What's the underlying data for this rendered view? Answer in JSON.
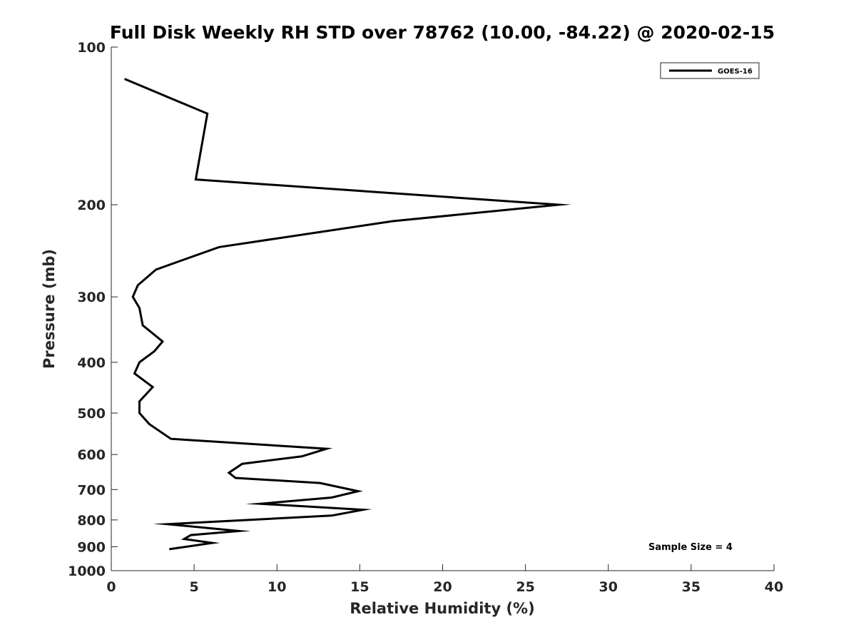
{
  "chart_data": {
    "type": "line",
    "title": "Full Disk Weekly RH STD over 78762 (10.00, -84.22) @ 2020-02-15",
    "xlabel": "Relative Humidity (%)",
    "ylabel": "Pressure (mb)",
    "xlim": [
      0,
      40
    ],
    "ylim": [
      100,
      1000
    ],
    "y_scale": "log",
    "y_reversed": true,
    "x_ticks": [
      0,
      5,
      10,
      15,
      20,
      25,
      30,
      35,
      40
    ],
    "y_ticks": [
      100,
      200,
      300,
      400,
      500,
      600,
      700,
      800,
      900,
      1000
    ],
    "grid": false,
    "legend_position": "top-right",
    "annotation": "Sample Size = 4",
    "series": [
      {
        "name": "GOES-16",
        "color": "#000000",
        "points": [
          {
            "x": 0.8,
            "p": 115
          },
          {
            "x": 5.8,
            "p": 134
          },
          {
            "x": 5.1,
            "p": 179
          },
          {
            "x": 27.0,
            "p": 200
          },
          {
            "x": 17.0,
            "p": 215
          },
          {
            "x": 6.5,
            "p": 241
          },
          {
            "x": 2.7,
            "p": 266
          },
          {
            "x": 1.6,
            "p": 285
          },
          {
            "x": 1.3,
            "p": 300
          },
          {
            "x": 1.7,
            "p": 315
          },
          {
            "x": 1.9,
            "p": 340
          },
          {
            "x": 3.1,
            "p": 365
          },
          {
            "x": 2.6,
            "p": 381
          },
          {
            "x": 1.7,
            "p": 400
          },
          {
            "x": 1.4,
            "p": 420
          },
          {
            "x": 2.5,
            "p": 446
          },
          {
            "x": 1.7,
            "p": 475
          },
          {
            "x": 1.7,
            "p": 500
          },
          {
            "x": 2.3,
            "p": 525
          },
          {
            "x": 3.6,
            "p": 560
          },
          {
            "x": 13.0,
            "p": 585
          },
          {
            "x": 11.5,
            "p": 605
          },
          {
            "x": 7.9,
            "p": 625
          },
          {
            "x": 7.1,
            "p": 650
          },
          {
            "x": 7.5,
            "p": 665
          },
          {
            "x": 12.6,
            "p": 680
          },
          {
            "x": 14.9,
            "p": 705
          },
          {
            "x": 13.3,
            "p": 725
          },
          {
            "x": 9.0,
            "p": 745
          },
          {
            "x": 15.2,
            "p": 765
          },
          {
            "x": 13.3,
            "p": 785
          },
          {
            "x": 3.4,
            "p": 815
          },
          {
            "x": 7.7,
            "p": 840
          },
          {
            "x": 4.8,
            "p": 855
          },
          {
            "x": 4.4,
            "p": 870
          },
          {
            "x": 6.1,
            "p": 885
          },
          {
            "x": 3.5,
            "p": 910
          }
        ]
      }
    ]
  }
}
